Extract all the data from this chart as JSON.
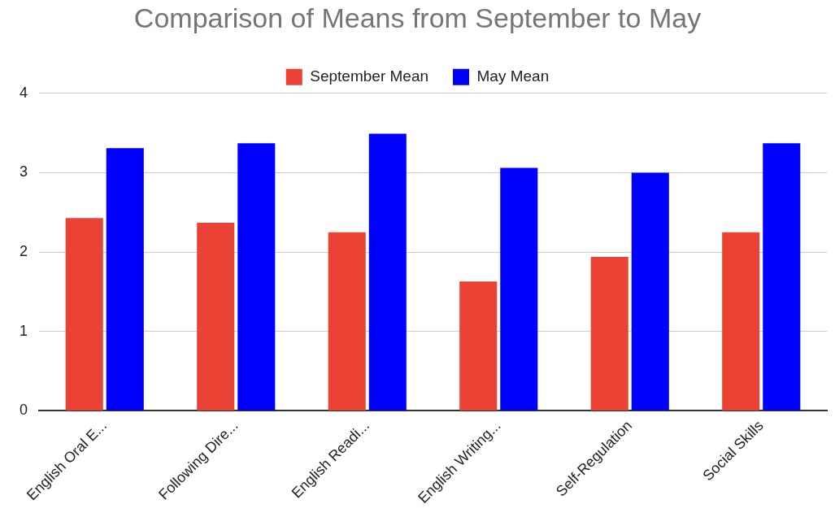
{
  "chart_data": {
    "type": "bar",
    "title": "Comparison of Means from September to May",
    "categories": [
      "English Oral E...",
      "Following Dire...",
      "English Readi...",
      "English Writing...",
      "Self-Regulation",
      "Social Skills"
    ],
    "series": [
      {
        "name": "September Mean",
        "color": "#ea4335",
        "values": [
          2.43,
          2.37,
          2.25,
          1.63,
          1.94,
          2.25
        ]
      },
      {
        "name": "May Mean",
        "color": "#0000ff",
        "values": [
          3.31,
          3.37,
          3.49,
          3.06,
          3.0,
          3.37
        ]
      }
    ],
    "ylim": [
      0,
      4
    ],
    "yticks": [
      0,
      1,
      2,
      3,
      4
    ],
    "grid": "y",
    "legend": "top"
  }
}
